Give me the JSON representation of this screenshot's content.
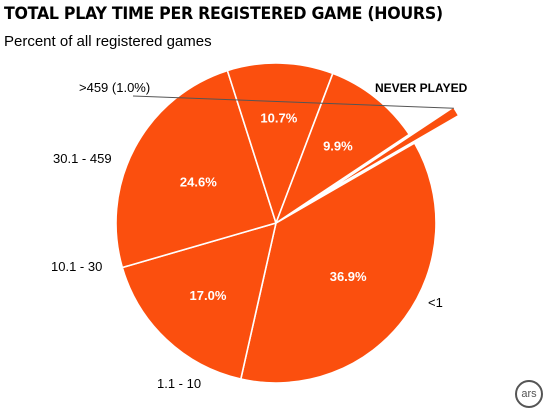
{
  "title": "TOTAL PLAY TIME PER REGISTERED GAME (HOURS)",
  "subtitle": "Percent of all registered games",
  "logo": "ars",
  "colors": {
    "slice_fill": "#fb4f0e",
    "slice_stroke": "#ffffff",
    "leader": "#555555"
  },
  "chart_data": {
    "type": "pie",
    "title": "TOTAL PLAY TIME PER REGISTERED GAME (HOURS)",
    "subtitle": "Percent of all registered games",
    "slices": [
      {
        "label": "NEVER PLAYED",
        "value": 36.9,
        "value_label": "36.9%"
      },
      {
        "label": "<1",
        "value": 17.0,
        "value_label": "17.0%"
      },
      {
        "label": "1.1 - 10",
        "value": 24.6,
        "value_label": "24.6%"
      },
      {
        "label": "10.1 - 30",
        "value": 10.7,
        "value_label": "10.7%"
      },
      {
        "label": "30.1 - 459",
        "value": 9.9,
        "value_label": "9.9%"
      },
      {
        "label": ">459 (1.0%)",
        "value": 1.0,
        "value_label": "",
        "exploded": true
      }
    ],
    "legend": "none"
  }
}
